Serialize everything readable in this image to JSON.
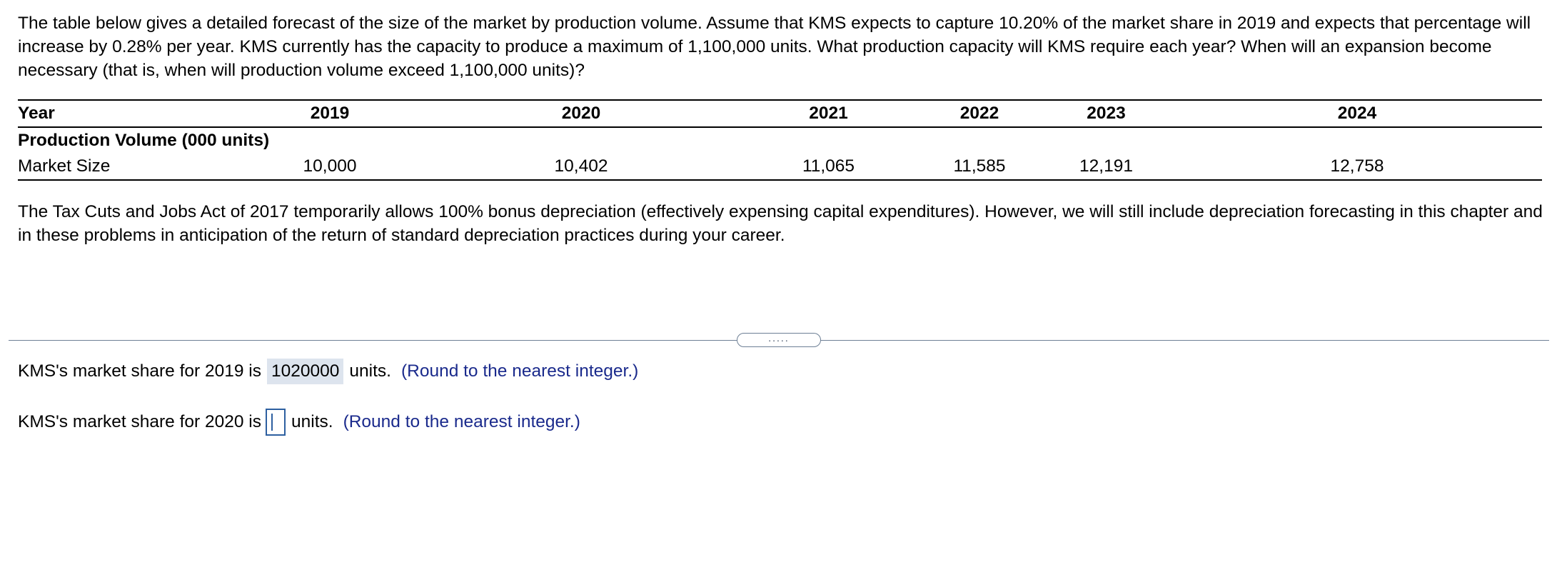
{
  "intro_text": "The table below gives a detailed forecast of the size of the market by production volume. Assume that KMS expects to capture 10.20% of the market share in 2019 and expects that percentage will increase by 0.28% per year. KMS currently has the capacity to produce a maximum of 1,100,000 units. What production capacity will KMS require each year? When will an expansion become necessary (that is, when will production volume exceed 1,100,000 units)?",
  "table": {
    "header_label": "Year",
    "years": [
      "2019",
      "2020",
      "2021",
      "2022",
      "2023",
      "2024"
    ],
    "section_label": "Production Volume (000 units)",
    "row_label": "Market Size",
    "market_size": [
      "10,000",
      "10,402",
      "11,065",
      "11,585",
      "12,191",
      "12,758"
    ]
  },
  "note_text": "The Tax Cuts and Jobs Act of 2017 temporarily allows 100% bonus depreciation (effectively expensing capital expenditures). However, we will still include depreciation forecasting in this chapter and in these problems in anticipation of the return of standard depreciation practices during your career.",
  "divider_handle": ".....",
  "q1": {
    "prefix": "KMS's market share for 2019 is",
    "answer": "1020000",
    "suffix": "units.",
    "hint": "(Round to the nearest integer.)"
  },
  "q2": {
    "prefix": "KMS's market share for 2020 is",
    "answer": "",
    "suffix": "units.",
    "hint": "(Round to the nearest integer.)"
  },
  "colors": {
    "hint_text": "#1a2a8c",
    "answer_bg": "#dde4ee",
    "input_border": "#2d5fa0",
    "divider": "#6d7f95"
  }
}
